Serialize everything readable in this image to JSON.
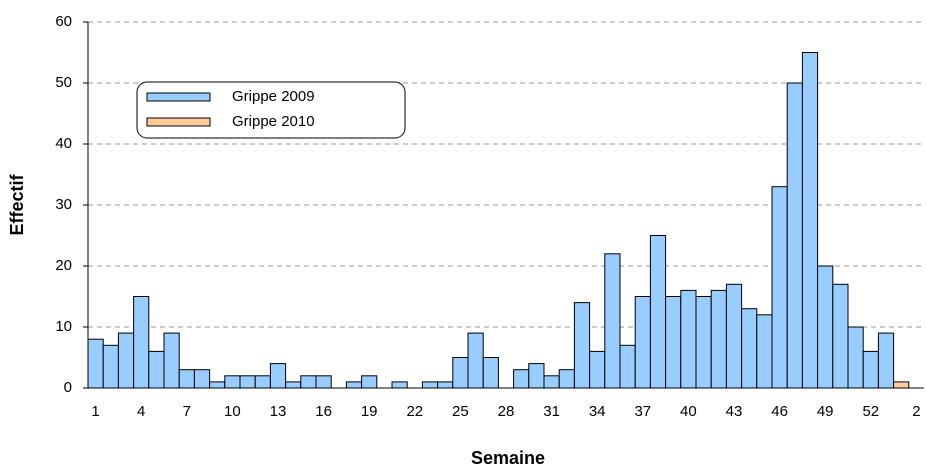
{
  "chart_data": {
    "type": "bar",
    "x_label": "Semaine",
    "y_label": "Effectif",
    "categories": [
      "1",
      null,
      null,
      "4",
      null,
      null,
      "7",
      null,
      null,
      "10",
      null,
      null,
      "13",
      null,
      null,
      "16",
      null,
      null,
      "19",
      null,
      null,
      "22",
      null,
      null,
      "25",
      null,
      null,
      "28",
      null,
      null,
      "31",
      null,
      null,
      "34",
      null,
      null,
      "37",
      null,
      null,
      "40",
      null,
      null,
      "43",
      null,
      null,
      "46",
      null,
      null,
      "49",
      null,
      null,
      "52",
      null,
      null,
      "2"
    ],
    "series": [
      {
        "name": "Grippe 2009",
        "color": "#99ccff",
        "values": [
          8,
          7,
          9,
          15,
          6,
          9,
          3,
          3,
          1,
          2,
          2,
          2,
          4,
          1,
          2,
          2,
          0,
          1,
          2,
          0,
          1,
          0,
          1,
          1,
          5,
          9,
          5,
          0,
          3,
          4,
          2,
          3,
          14,
          6,
          22,
          7,
          15,
          25,
          15,
          16,
          15,
          16,
          17,
          13,
          12,
          33,
          50,
          55,
          20,
          17,
          10,
          6,
          9,
          null,
          null
        ]
      },
      {
        "name": "Grippe 2010",
        "color": "#ffcc99",
        "values": [
          null,
          null,
          null,
          null,
          null,
          null,
          null,
          null,
          null,
          null,
          null,
          null,
          null,
          null,
          null,
          null,
          null,
          null,
          null,
          null,
          null,
          null,
          null,
          null,
          null,
          null,
          null,
          null,
          null,
          null,
          null,
          null,
          null,
          null,
          null,
          null,
          null,
          null,
          null,
          null,
          null,
          null,
          null,
          null,
          null,
          null,
          null,
          null,
          null,
          null,
          null,
          null,
          null,
          1,
          null
        ]
      }
    ],
    "ylim": [
      0,
      60
    ],
    "yticks": [
      0,
      10,
      20,
      30,
      40,
      50,
      60
    ],
    "grid": true,
    "legend": "upper left"
  }
}
